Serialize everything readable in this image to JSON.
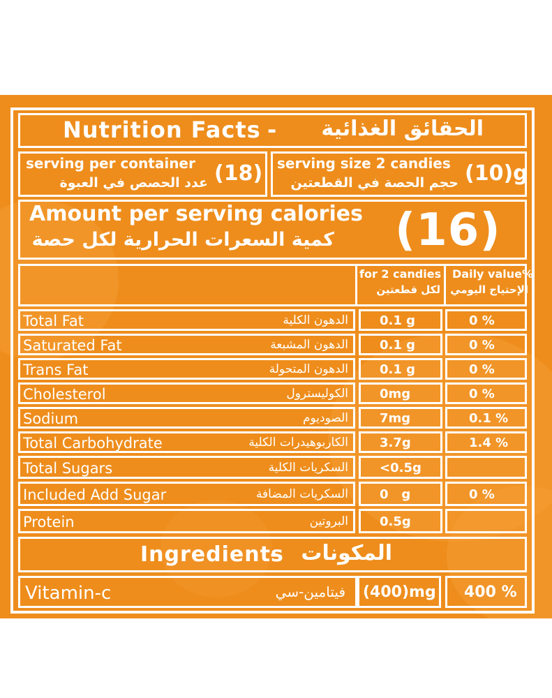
{
  "colors": {
    "background": "#ee8d1c",
    "lines_and_text": "#ffffff"
  },
  "title": {
    "english": "Nutrition Facts",
    "separator": "-",
    "arabic": "الحقائق الغذائية"
  },
  "servings_per_container": {
    "english": "serving per container",
    "arabic": "عدد الحصص في العبوة",
    "value": "(18)"
  },
  "serving_size": {
    "english": "serving size 2 candies",
    "arabic": "حجم الحصة في القطعتين",
    "value": "(10)g"
  },
  "calories": {
    "english": "Amount per serving calories",
    "arabic": "كمية السعرات الحرارية لكل حصة",
    "value": "(16)"
  },
  "table_header": {
    "per_serving_en": "for 2 candies",
    "per_serving_ar": "لكل قطعتين",
    "daily_value_en": "Daily value%",
    "daily_value_ar": "الإحتياج اليومي"
  },
  "nutrients": [
    {
      "english": "Total Fat",
      "arabic": "الدهون الكلية",
      "amount": "0.1 g",
      "daily": "0 %"
    },
    {
      "english": "Saturated Fat",
      "arabic": "الدهون المشبعة",
      "amount": "0.1 g",
      "daily": "0 %"
    },
    {
      "english": "Trans Fat",
      "arabic": "الدهون المتحولة",
      "amount": "0.1 g",
      "daily": "0 %"
    },
    {
      "english": "Cholesterol",
      "arabic": "الكوليسترول",
      "amount": "0mg",
      "daily": "0 %"
    },
    {
      "english": "Sodium",
      "arabic": "الصوديوم",
      "amount": "7mg",
      "daily": "0.1 %"
    },
    {
      "english": "Total Carbohydrate",
      "arabic": "الكاربوهيدرات الكلية",
      "amount": "3.7g",
      "daily": "1.4 %"
    },
    {
      "english": "Total Sugars",
      "arabic": "السكريات الكلية",
      "amount": "<0.5g",
      "daily": ""
    },
    {
      "english": "Included Add Sugar",
      "arabic": "السكريات المضافة",
      "amount": "0   g",
      "daily": "0 %"
    },
    {
      "english": "Protein",
      "arabic": "البروتين",
      "amount": "0.5g",
      "daily": ""
    }
  ],
  "ingredients": {
    "english": "Ingredients",
    "separator": "-",
    "arabic": "المكونات"
  },
  "vitamin": {
    "english": "Vitamin-c",
    "arabic": "فيتامين-سي",
    "amount": "(400)mg",
    "daily": "400 %"
  }
}
